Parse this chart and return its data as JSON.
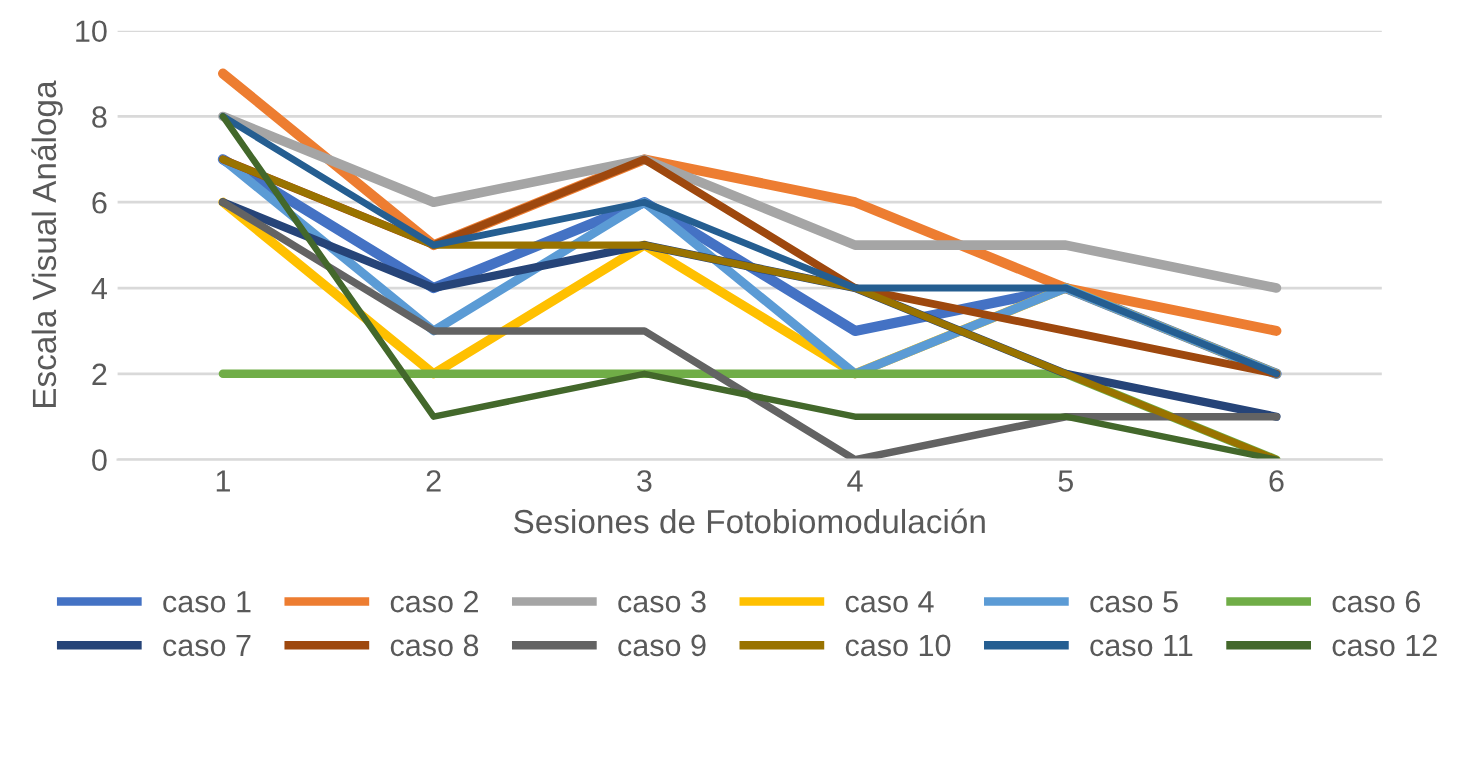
{
  "chart_data": {
    "type": "line",
    "xlabel": "Sesiones de Fotobiomodulación",
    "ylabel": "Escala Visual Análoga",
    "categories": [
      "1",
      "2",
      "3",
      "4",
      "5",
      "6"
    ],
    "ylim": [
      0,
      10
    ],
    "yticks": [
      0,
      2,
      4,
      6,
      8,
      10
    ],
    "grid": "y",
    "legend": "bottom",
    "marker": "none",
    "line_style": "solid",
    "series": [
      {
        "name": "caso 1",
        "color": "#4472c4",
        "values": [
          7,
          4,
          6,
          3,
          4,
          2
        ]
      },
      {
        "name": "caso 2",
        "color": "#ed7d31",
        "values": [
          9,
          5,
          7,
          6,
          4,
          3
        ]
      },
      {
        "name": "caso 3",
        "color": "#a5a5a5",
        "values": [
          8,
          6,
          7,
          5,
          5,
          4
        ]
      },
      {
        "name": "caso 4",
        "color": "#ffc000",
        "values": [
          6,
          2,
          5,
          2,
          4,
          2
        ]
      },
      {
        "name": "caso 5",
        "color": "#5b9bd5",
        "values": [
          7,
          3,
          6,
          2,
          4,
          2
        ]
      },
      {
        "name": "caso 6",
        "color": "#70ad47",
        "values": [
          2,
          2,
          2,
          2,
          2,
          0
        ]
      },
      {
        "name": "caso 7",
        "color": "#264478",
        "values": [
          6,
          4,
          5,
          4,
          2,
          1
        ]
      },
      {
        "name": "caso 8",
        "color": "#9e480e",
        "values": [
          7,
          5,
          7,
          4,
          3,
          2
        ]
      },
      {
        "name": "caso 9",
        "color": "#636363",
        "values": [
          6,
          3,
          3,
          0,
          1,
          1
        ]
      },
      {
        "name": "caso 10",
        "color": "#997300",
        "values": [
          7,
          5,
          5,
          4,
          2,
          0
        ]
      },
      {
        "name": "caso 11",
        "color": "#255e91",
        "values": [
          8,
          5,
          6,
          4,
          4,
          2
        ]
      },
      {
        "name": "caso 12",
        "color": "#43682b",
        "values": [
          8,
          1,
          2,
          1,
          1,
          0
        ]
      }
    ]
  }
}
